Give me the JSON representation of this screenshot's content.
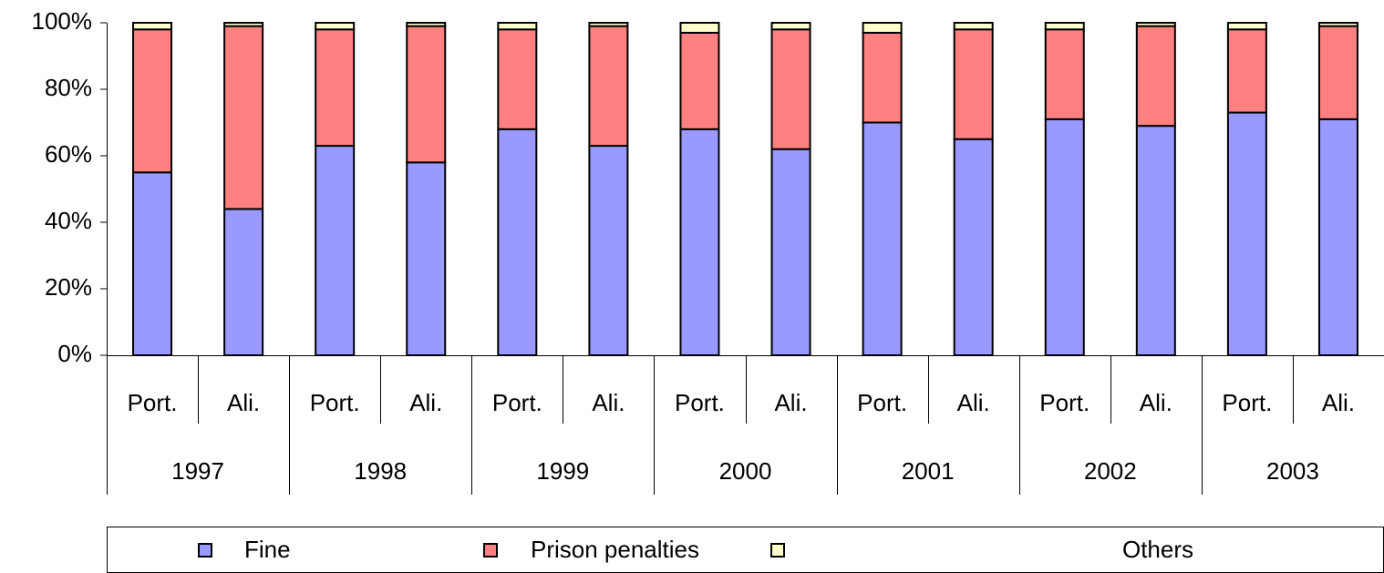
{
  "chart_data": {
    "type": "stacked_bar",
    "categories": [
      "Port.",
      "Ali.",
      "Port.",
      "Ali.",
      "Port.",
      "Ali.",
      "Port.",
      "Ali.",
      "Port.",
      "Ali.",
      "Port.",
      "Ali.",
      "Port.",
      "Ali."
    ],
    "groups": [
      "1997",
      "1998",
      "1999",
      "2000",
      "2001",
      "2002",
      "2003"
    ],
    "series": [
      {
        "name": "Fine",
        "color": "#9999ff",
        "values": [
          55,
          44,
          63,
          58,
          68,
          63,
          68,
          62,
          70,
          65,
          71,
          69,
          73,
          71
        ]
      },
      {
        "name": "Prison penalties",
        "color": "#ff8080",
        "values": [
          43,
          55,
          35,
          41,
          30,
          36,
          29,
          36,
          27,
          33,
          27,
          30,
          25,
          28
        ]
      },
      {
        "name": "Others",
        "color": "#ffffcc",
        "values": [
          2,
          1,
          2,
          1,
          2,
          1,
          3,
          2,
          3,
          2,
          2,
          1,
          2,
          1
        ]
      }
    ],
    "ylim": [
      0,
      100
    ],
    "yticks": [
      {
        "value": 0,
        "label": "0%"
      },
      {
        "value": 20,
        "label": "20%"
      },
      {
        "value": 40,
        "label": "40%"
      },
      {
        "value": 60,
        "label": "60%"
      },
      {
        "value": 80,
        "label": "80%"
      },
      {
        "value": 100,
        "label": "100%"
      }
    ],
    "legend": "bottom"
  }
}
